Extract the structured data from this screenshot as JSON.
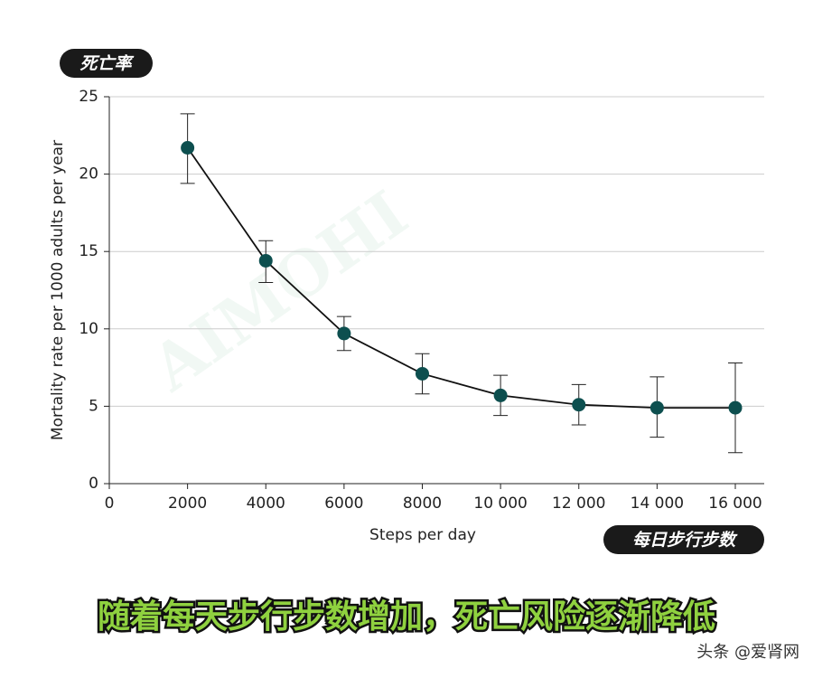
{
  "chart_data": {
    "type": "line",
    "y_label": "Mortality rate per 1000 adults per year",
    "x_label": "Steps per day",
    "annotations": [
      "死亡率",
      "每日步行步数"
    ],
    "x": [
      2000,
      4000,
      6000,
      8000,
      10000,
      12000,
      14000,
      16000
    ],
    "series": [
      {
        "name": "Mortality rate",
        "color": "#0d4f4f",
        "values": [
          21.7,
          14.4,
          9.7,
          7.1,
          5.7,
          5.1,
          4.9,
          4.9
        ],
        "lower": [
          19.4,
          13.0,
          8.6,
          5.8,
          4.4,
          3.8,
          3.0,
          2.0
        ],
        "upper": [
          23.9,
          15.7,
          10.8,
          8.4,
          7.0,
          6.4,
          6.9,
          7.8
        ]
      }
    ],
    "xlim": [
      0,
      16000
    ],
    "xticks": [
      0,
      2000,
      4000,
      6000,
      8000,
      {
        "value": 10000,
        "label": "10 000"
      },
      {
        "value": 12000,
        "label": "12 000"
      },
      {
        "value": 14000,
        "label": "14 000"
      },
      {
        "value": 16000,
        "label": "16 000"
      }
    ],
    "ylim": [
      0,
      25
    ],
    "yticks": [
      0,
      5,
      10,
      15,
      20,
      25
    ],
    "grid": true
  },
  "banner": "随着每天步行步数增加，死亡风险逐渐降低",
  "watermark": "AIMOHI",
  "credit": "头条 @爱肾网"
}
